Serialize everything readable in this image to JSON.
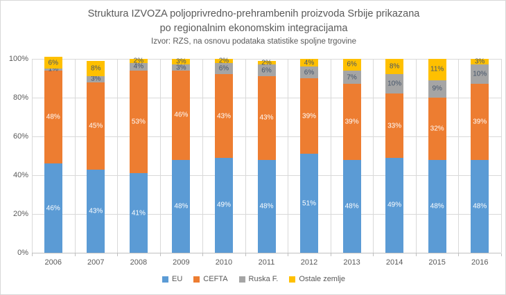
{
  "chart": {
    "title_lines": [
      "Struktura IZVOZA poljoprivredno-prehrambenih proizvoda Srbije prikazana",
      "po regionalnim ekonomskim integracijama"
    ],
    "subtitle": "Izvor: RZS, na osnovu podataka statistike spoljne trgovine"
  },
  "chart_data": {
    "type": "bar",
    "stacked": true,
    "title": "Struktura IZVOZA poljoprivredno-prehrambenih proizvoda Srbije prikazana po regionalnim ekonomskim integracijama",
    "subtitle": "Izvor: RZS, na osnovu podataka statistike spoljne trgovine",
    "categories": [
      "2006",
      "2007",
      "2008",
      "2009",
      "2010",
      "2011",
      "2012",
      "2013",
      "2014",
      "2015",
      "2016"
    ],
    "series": [
      {
        "name": "EU",
        "color": "#5B9BD5",
        "label_color": "#FFFFFF",
        "values": [
          46,
          43,
          41,
          48,
          49,
          48,
          51,
          48,
          49,
          48,
          48
        ]
      },
      {
        "name": "CEFTA",
        "color": "#ED7D31",
        "label_color": "#FFFFFF",
        "values": [
          48,
          45,
          53,
          46,
          43,
          43,
          39,
          39,
          33,
          32,
          39
        ]
      },
      {
        "name": "Ruska F.",
        "color": "#A5A5A5",
        "label_color": "#44546A",
        "values": [
          1,
          3,
          4,
          3,
          6,
          6,
          6,
          7,
          10,
          9,
          10
        ]
      },
      {
        "name": "Ostale zemlje",
        "color": "#FFC000",
        "label_color": "#44546A",
        "values": [
          6,
          8,
          2,
          3,
          2,
          2,
          4,
          6,
          8,
          11,
          3
        ]
      }
    ],
    "value_suffix": "%",
    "ylim": [
      0,
      100
    ],
    "yticks": [
      {
        "label": "0%",
        "value": 0
      },
      {
        "label": "20%",
        "value": 20
      },
      {
        "label": "40%",
        "value": 40
      },
      {
        "label": "60%",
        "value": 60
      },
      {
        "label": "80%",
        "value": 80
      },
      {
        "label": "100%",
        "value": 100
      }
    ],
    "grid": true,
    "legend_position": "bottom",
    "colors": {
      "text": "#595959",
      "gridline": "#D9D9D9",
      "axis_line": "#BFBFBF"
    }
  }
}
